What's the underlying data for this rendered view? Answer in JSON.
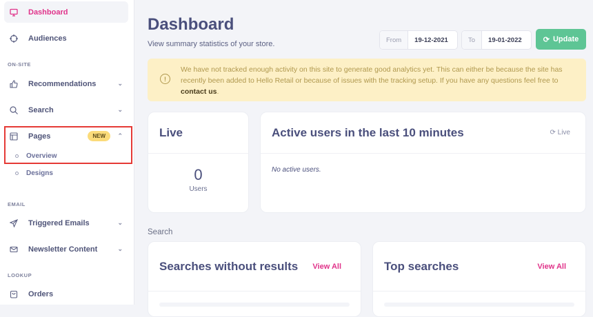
{
  "sidebar": {
    "items": [
      {
        "label": "Dashboard",
        "icon": "monitor-icon",
        "active": true
      },
      {
        "label": "Audiences",
        "icon": "target-icon"
      },
      {
        "label": "Recommendations",
        "icon": "thumbs-up-icon"
      },
      {
        "label": "Search",
        "icon": "search-icon"
      },
      {
        "label": "Pages",
        "icon": "layout-icon",
        "badge": "NEW"
      },
      {
        "label": "Triggered Emails",
        "icon": "send-icon"
      },
      {
        "label": "Newsletter Content",
        "icon": "mail-icon"
      },
      {
        "label": "Orders",
        "icon": "bag-icon"
      }
    ],
    "sections": [
      "ON-SITE",
      "EMAIL",
      "LOOKUP"
    ],
    "pages_sub": [
      "Overview",
      "Designs"
    ]
  },
  "header": {
    "title": "Dashboard",
    "subtitle": "View summary statistics of your store.",
    "from_label": "From",
    "from_value": "19-12-2021",
    "to_label": "To",
    "to_value": "19-01-2022",
    "update_label": "Update"
  },
  "alert": {
    "text": "We have not tracked enough activity on this site to generate good analytics yet. This can either be because the site has recently been added to Hello Retail or because of issues with the tracking setup. If you have any questions feel free to ",
    "link": "contact us",
    "end": "."
  },
  "live": {
    "title": "Live",
    "count": "0",
    "unit": "Users"
  },
  "active": {
    "title": "Active users in the last 10 minutes",
    "live_label": "Live",
    "empty": "No active users."
  },
  "search_section": "Search",
  "searches_without": {
    "title": "Searches without results",
    "view_all": "View All"
  },
  "top_searches": {
    "title": "Top searches",
    "view_all": "View All"
  },
  "colors": {
    "accent": "#e0338a",
    "update": "#5ec595",
    "alert_bg": "#fdf0c6",
    "highlight": "#e53935"
  }
}
